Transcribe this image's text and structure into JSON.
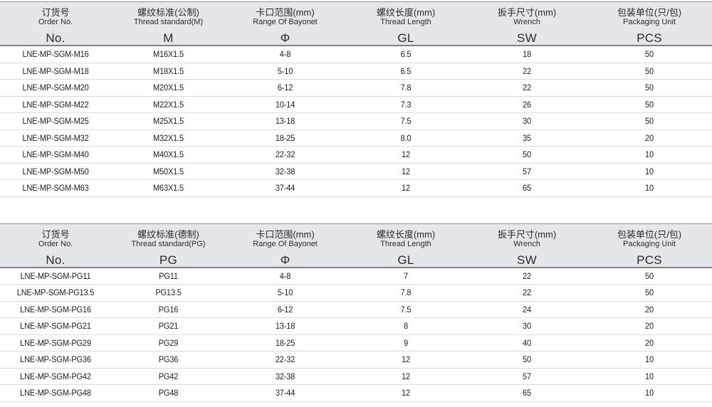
{
  "colors": {
    "header_bg": "#e4e6e9",
    "header_border_dark": "#7e8185",
    "row_divider": "#d9dbdd",
    "text": "#1d1d1d"
  },
  "tables": [
    {
      "name": "metric-thread-spec-table",
      "columns": [
        {
          "cn": "订货号",
          "en": "Order No.",
          "symbol": "No."
        },
        {
          "cn": "螺纹标准(公制)",
          "en": "Thread standard(M)",
          "symbol": "M"
        },
        {
          "cn": "卡口范围(mm)",
          "en": "Range Of Bayonet",
          "symbol": "Φ"
        },
        {
          "cn": "螺纹长度(mm)",
          "en": "Thread Length",
          "symbol": "GL"
        },
        {
          "cn": "扳手尺寸(mm)",
          "en": "Wrench",
          "symbol": "SW"
        },
        {
          "cn": "包装单位(只/包)",
          "en": "Packaging Unit",
          "symbol": "PCS"
        }
      ],
      "rows": [
        [
          "LNE-MP-SGM-M16",
          "M16X1.5",
          "4-8",
          "6.5",
          "18",
          "50"
        ],
        [
          "LNE-MP-SGM-M18",
          "M18X1.5",
          "5-10",
          "6.5",
          "22",
          "50"
        ],
        [
          "LNE-MP-SGM-M20",
          "M20X1.5",
          "6-12",
          "7.8",
          "22",
          "50"
        ],
        [
          "LNE-MP-SGM-M22",
          "M22X1.5",
          "10-14",
          "7.3",
          "26",
          "50"
        ],
        [
          "LNE-MP-SGM-M25",
          "M25X1.5",
          "13-18",
          "7.5",
          "30",
          "50"
        ],
        [
          "LNE-MP-SGM-M32",
          "M32X1.5",
          "18-25",
          "8.0",
          "35",
          "20"
        ],
        [
          "LNE-MP-SGM-M40",
          "M40X1.5",
          "22-32",
          "12",
          "50",
          "10"
        ],
        [
          "LNE-MP-SGM-M50",
          "M50X1.5",
          "32-38",
          "12",
          "57",
          "10"
        ],
        [
          "LNE-MP-SGM-M63",
          "M63X1.5",
          "37-44",
          "12",
          "65",
          "10"
        ]
      ]
    },
    {
      "name": "pg-thread-spec-table",
      "columns": [
        {
          "cn": "订货号",
          "en": "Order No.",
          "symbol": "No."
        },
        {
          "cn": "螺纹标准(德制)",
          "en": "Thread standard(PG)",
          "symbol": "PG"
        },
        {
          "cn": "卡口范围(mm)",
          "en": "Range Of Bayonet",
          "symbol": "Φ"
        },
        {
          "cn": "螺纹长度(mm)",
          "en": "Thread Length",
          "symbol": "GL"
        },
        {
          "cn": "扳手尺寸(mm)",
          "en": "Wrench",
          "symbol": "SW"
        },
        {
          "cn": "包装单位(只/包)",
          "en": "Packaging Unit",
          "symbol": "PCS"
        }
      ],
      "rows": [
        [
          "LNE-MP-SGM-PG11",
          "PG11",
          "4-8",
          "7",
          "22",
          "50"
        ],
        [
          "LNE-MP-SGM-PG13.5",
          "PG13.5",
          "5-10",
          "7.8",
          "22",
          "50"
        ],
        [
          "LNE-MP-SGM-PG16",
          "PG16",
          "6-12",
          "7.5",
          "24",
          "20"
        ],
        [
          "LNE-MP-SGM-PG21",
          "PG21",
          "13-18",
          "8",
          "30",
          "20"
        ],
        [
          "LNE-MP-SGM-PG29",
          "PG29",
          "18-25",
          "9",
          "40",
          "20"
        ],
        [
          "LNE-MP-SGM-PG36",
          "PG36",
          "22-32",
          "12",
          "50",
          "10"
        ],
        [
          "LNE-MP-SGM-PG42",
          "PG42",
          "32-38",
          "12",
          "57",
          "10"
        ],
        [
          "LNE-MP-SGM-PG48",
          "PG48",
          "37-44",
          "12",
          "65",
          "10"
        ]
      ]
    }
  ]
}
